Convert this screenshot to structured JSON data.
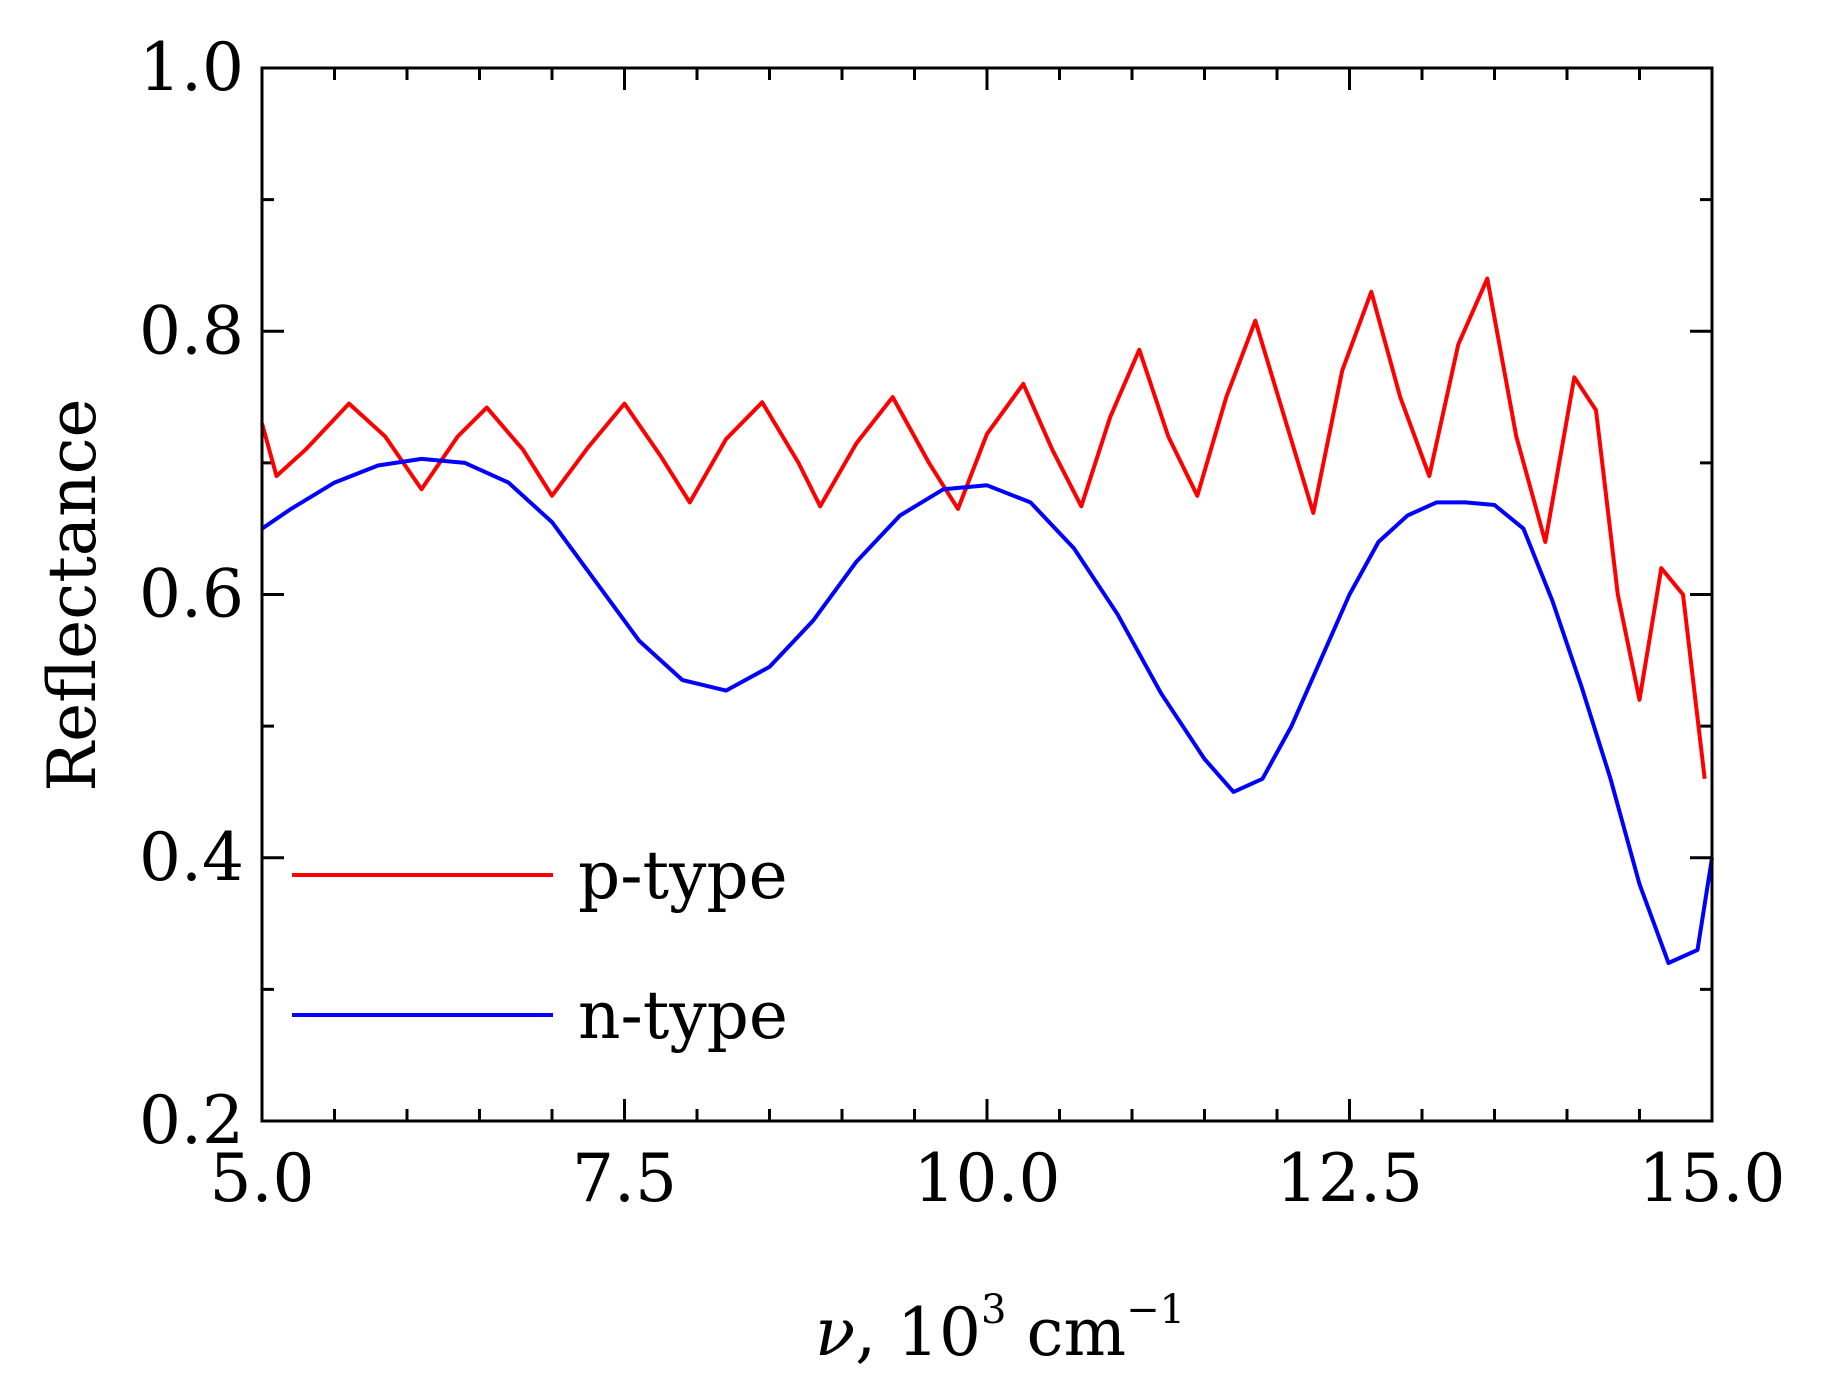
{
  "chart_data": {
    "type": "line",
    "title": "",
    "xlabel": {
      "symbol": "ν",
      "text": ", 10",
      "superscript": "3",
      "unit": "cm",
      "unit_superscript": "−1"
    },
    "ylabel": "Reflectance",
    "xlim": [
      5.0,
      15.0
    ],
    "ylim": [
      0.2,
      1.0
    ],
    "x_ticks": [
      5.0,
      7.5,
      10.0,
      12.5,
      15.0
    ],
    "x_tick_labels": [
      "5.0",
      "7.5",
      "10.0",
      "12.5",
      "15.0"
    ],
    "x_minor_step": 0.5,
    "y_ticks": [
      0.2,
      0.4,
      0.6,
      0.8,
      1.0
    ],
    "y_tick_labels": [
      "0.2",
      "0.4",
      "0.6",
      "0.8",
      "1.0"
    ],
    "y_minor_step": 0.1,
    "grid": false,
    "legend_position": "bottom-left",
    "series": [
      {
        "name": "p-type",
        "color": "#ff0000",
        "x": [
          5.0,
          5.1,
          5.3,
          5.6,
          5.85,
          6.1,
          6.35,
          6.55,
          6.8,
          7.0,
          7.25,
          7.5,
          7.75,
          7.95,
          8.2,
          8.45,
          8.7,
          8.85,
          9.1,
          9.35,
          9.6,
          9.8,
          10.0,
          10.25,
          10.45,
          10.65,
          10.85,
          11.05,
          11.25,
          11.45,
          11.65,
          11.85,
          12.05,
          12.25,
          12.45,
          12.65,
          12.85,
          13.05,
          13.25,
          13.45,
          13.65,
          13.85,
          14.05,
          14.2,
          14.35,
          14.5,
          14.65,
          14.8,
          14.95
        ],
        "y": [
          0.73,
          0.69,
          0.71,
          0.745,
          0.72,
          0.68,
          0.72,
          0.742,
          0.71,
          0.675,
          0.712,
          0.745,
          0.705,
          0.67,
          0.718,
          0.746,
          0.7,
          0.667,
          0.715,
          0.75,
          0.7,
          0.665,
          0.722,
          0.76,
          0.71,
          0.667,
          0.735,
          0.786,
          0.72,
          0.675,
          0.75,
          0.808,
          0.735,
          0.662,
          0.77,
          0.83,
          0.75,
          0.69,
          0.79,
          0.84,
          0.72,
          0.64,
          0.765,
          0.74,
          0.6,
          0.52,
          0.62,
          0.6,
          0.46
        ]
      },
      {
        "name": "n-type",
        "color": "#0000ff",
        "x": [
          5.0,
          5.2,
          5.5,
          5.8,
          6.1,
          6.4,
          6.7,
          7.0,
          7.3,
          7.6,
          7.9,
          8.2,
          8.5,
          8.8,
          9.1,
          9.4,
          9.7,
          10.0,
          10.3,
          10.6,
          10.9,
          11.2,
          11.5,
          11.7,
          11.9,
          12.1,
          12.3,
          12.5,
          12.7,
          12.9,
          13.1,
          13.3,
          13.5,
          13.7,
          13.9,
          14.1,
          14.3,
          14.5,
          14.7,
          14.9,
          15.0
        ],
        "y": [
          0.65,
          0.665,
          0.685,
          0.698,
          0.703,
          0.7,
          0.685,
          0.655,
          0.61,
          0.565,
          0.535,
          0.527,
          0.545,
          0.58,
          0.625,
          0.66,
          0.68,
          0.683,
          0.67,
          0.635,
          0.585,
          0.525,
          0.475,
          0.45,
          0.46,
          0.5,
          0.55,
          0.6,
          0.64,
          0.66,
          0.67,
          0.67,
          0.668,
          0.65,
          0.595,
          0.53,
          0.46,
          0.38,
          0.32,
          0.33,
          0.4
        ]
      }
    ]
  }
}
